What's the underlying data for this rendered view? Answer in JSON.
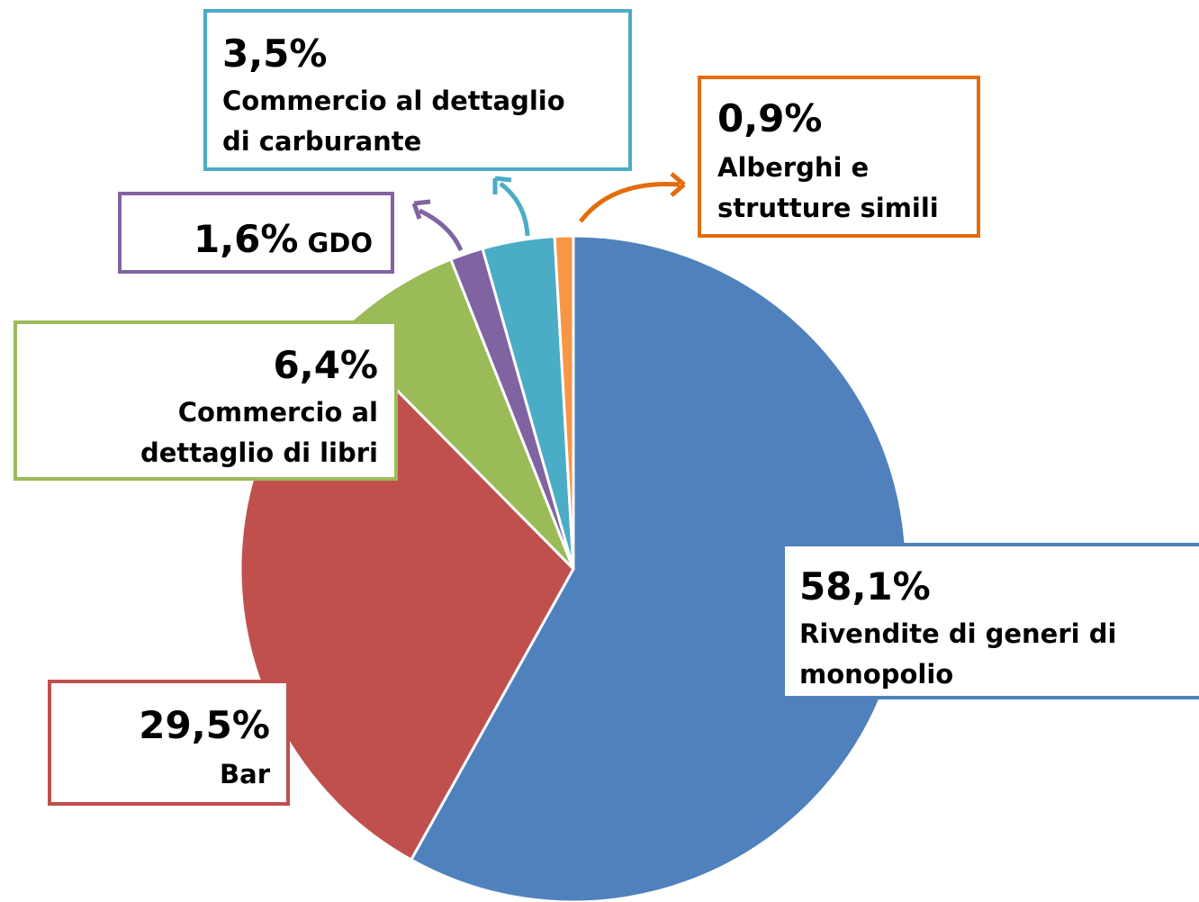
{
  "chart_data": {
    "type": "pie",
    "categories": [
      "Rivendite di generi di\nmonopolio",
      "Bar",
      "Commercio al\ndettaglio di libri",
      "GDO",
      "Commercio al dettaglio\ndi carburante",
      "Alberghi e\nstrutture simili"
    ],
    "values": [
      58.1,
      29.5,
      6.4,
      1.6,
      3.5,
      0.9
    ],
    "value_labels": [
      "58,1%",
      "29,5%",
      "6,4%",
      "1,6%",
      "3,5%",
      "0,9%"
    ],
    "colors": [
      "#4f81bd",
      "#c0504d",
      "#9bbb59",
      "#8064a2",
      "#4bacc6",
      "#f79646"
    ]
  }
}
